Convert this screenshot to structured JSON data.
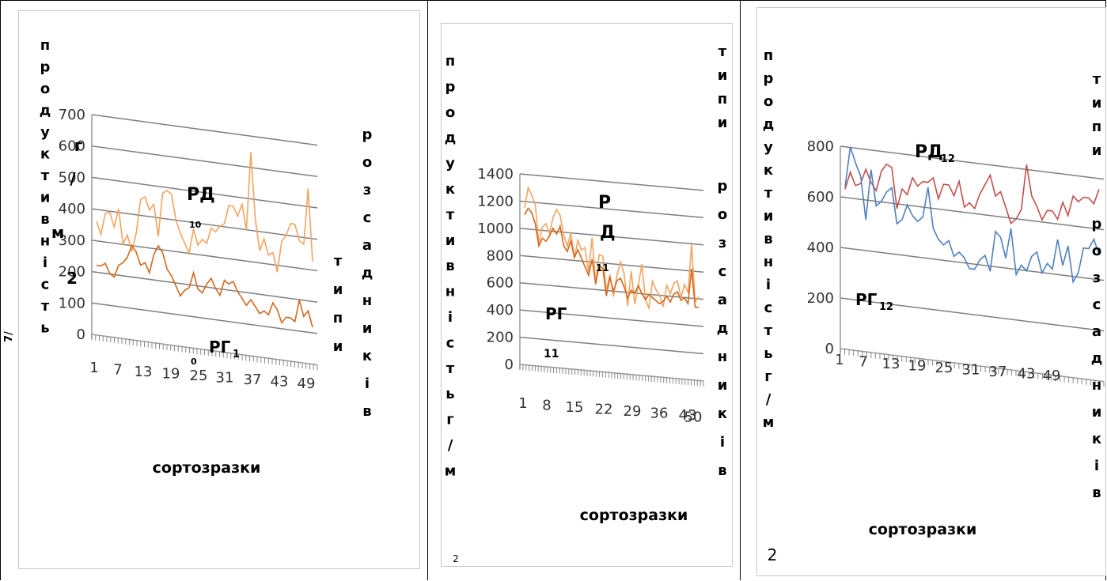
{
  "charts": [
    {
      "ylabel": [
        "п",
        "р",
        "о",
        "д",
        "у",
        "к",
        "т",
        "и",
        "в",
        "н",
        "і",
        "с",
        "т",
        "ь"
      ],
      "unit": [
        "г",
        "/",
        "м",
        "2"
      ],
      "right_label_a": [
        "р",
        "о",
        "з",
        "с",
        "а",
        "д",
        "н",
        "и",
        "к",
        "і",
        "в"
      ],
      "right_label_b": [
        "т",
        "и",
        "п",
        "и"
      ],
      "xlabel": "сортозразки",
      "yticks": [
        "0",
        "100",
        "200",
        "300",
        "400",
        "500",
        "600",
        "700"
      ],
      "xticks": [
        "1",
        "7",
        "13",
        "19",
        "25",
        "31",
        "37",
        "43",
        "49"
      ],
      "series_labels": [
        {
          "main": "РД",
          "sub": "10"
        },
        {
          "main": "РГ",
          "sub": "1"
        }
      ],
      "stray": [
        "0",
        "7/"
      ]
    },
    {
      "ylabel": [
        "п",
        "р",
        "о",
        "д",
        "у",
        "к",
        "т",
        "и",
        "в",
        "н",
        "і",
        "с",
        "т",
        "ь",
        "г",
        "/",
        "м"
      ],
      "ylabel_sub": "2",
      "right_label_a": [
        "т",
        "и",
        "п",
        "и"
      ],
      "right_label_b": [
        "р",
        "о",
        "з",
        "с",
        "а",
        "д",
        "н",
        "и",
        "к",
        "і",
        "в"
      ],
      "xlabel": "сортозразки",
      "yticks": [
        "0",
        "200",
        "400",
        "600",
        "800",
        "1000",
        "1200",
        "1400"
      ],
      "xticks": [
        "1",
        "8",
        "15",
        "22",
        "29",
        "36",
        "43",
        "50"
      ],
      "series_labels": [
        {
          "main": "Р",
          "main2": "Д",
          "sub": "11"
        },
        {
          "main": "РГ",
          "sub": "11"
        }
      ]
    },
    {
      "ylabel": [
        "п",
        "р",
        "о",
        "д",
        "у",
        "к",
        "т",
        "и",
        "в",
        "н",
        "і",
        "с",
        "т",
        "ь",
        "г",
        "/",
        "м"
      ],
      "ylabel_sub": "2",
      "right_label_a": [
        "т",
        "и",
        "п",
        "и"
      ],
      "right_label_b": [
        "р",
        "о",
        "з",
        "с",
        "а",
        "д",
        "н",
        "и",
        "к",
        "і",
        "в"
      ],
      "xlabel": "сортозразки",
      "yticks": [
        "0",
        "200",
        "400",
        "600",
        "800"
      ],
      "xticks": [
        "1",
        "7",
        "13",
        "19",
        "25",
        "31",
        "37",
        "43",
        "49"
      ],
      "series_labels": [
        {
          "main": "РД",
          "sub": "12"
        },
        {
          "main": "РГ",
          "sub": "12"
        }
      ]
    }
  ],
  "chart_data": [
    {
      "type": "line",
      "ylim": [
        0,
        700
      ],
      "x": [
        1,
        2,
        3,
        4,
        5,
        6,
        7,
        8,
        9,
        10,
        11,
        12,
        13,
        14,
        15,
        16,
        17,
        18,
        19,
        20,
        21,
        22,
        23,
        24,
        25,
        26,
        27,
        28,
        29,
        30,
        31,
        32,
        33,
        34,
        35,
        36,
        37,
        38,
        39,
        40,
        41,
        42,
        43,
        44,
        45,
        46,
        47,
        48,
        49,
        50
      ],
      "series": [
        {
          "color": "#f4a460",
          "values": [
            360,
            320,
            390,
            395,
            350,
            410,
            300,
            330,
            280,
            340,
            450,
            460,
            420,
            440,
            340,
            480,
            490,
            480,
            400,
            360,
            330,
            300,
            380,
            330,
            350,
            340,
            390,
            380,
            400,
            410,
            470,
            470,
            440,
            480,
            400,
            650,
            440,
            340,
            380,
            330,
            340,
            280,
            380,
            400,
            440,
            440,
            390,
            380,
            560,
            330
          ]
        },
        {
          "color": "#d2691e",
          "values": [
            220,
            220,
            230,
            200,
            190,
            230,
            240,
            260,
            300,
            280,
            240,
            250,
            220,
            280,
            310,
            290,
            240,
            220,
            190,
            160,
            180,
            190,
            240,
            190,
            180,
            210,
            230,
            200,
            180,
            230,
            220,
            230,
            200,
            180,
            160,
            180,
            160,
            140,
            150,
            140,
            180,
            160,
            120,
            140,
            140,
            130,
            200,
            150,
            170,
            120
          ]
        }
      ]
    },
    {
      "type": "line",
      "ylim": [
        0,
        1400
      ],
      "x": [
        1,
        2,
        3,
        4,
        5,
        6,
        7,
        8,
        9,
        10,
        11,
        12,
        13,
        14,
        15,
        16,
        17,
        18,
        19,
        20,
        21,
        22,
        23,
        24,
        25,
        26,
        27,
        28,
        29,
        30,
        31,
        32,
        33,
        34,
        35,
        36,
        37,
        38,
        39,
        40,
        41,
        42,
        43,
        44,
        45,
        46,
        47,
        48,
        49,
        50
      ],
      "series": [
        {
          "color": "#f4a460",
          "values": [
            1150,
            1300,
            1250,
            1180,
            900,
            1020,
            1050,
            980,
            1100,
            1160,
            1120,
            980,
            900,
            1000,
            820,
            950,
            880,
            900,
            720,
            980,
            650,
            860,
            850,
            600,
            720,
            560,
            720,
            820,
            740,
            500,
            760,
            520,
            660,
            820,
            560,
            500,
            700,
            640,
            600,
            520,
            680,
            620,
            700,
            720,
            600,
            700,
            640,
            1000,
            580,
            620
          ]
        },
        {
          "color": "#d2691e",
          "values": [
            1100,
            1150,
            1120,
            1040,
            880,
            940,
            920,
            960,
            1020,
            980,
            1040,
            900,
            860,
            940,
            820,
            880,
            820,
            760,
            700,
            820,
            640,
            780,
            760,
            560,
            700,
            600,
            680,
            700,
            640,
            560,
            620,
            600,
            660,
            600,
            560,
            600,
            580,
            560,
            540,
            560,
            600,
            560,
            620,
            640,
            580,
            600,
            560,
            820,
            540,
            540
          ]
        }
      ]
    },
    {
      "type": "line",
      "ylim": [
        0,
        800
      ],
      "x": [
        1,
        2,
        3,
        4,
        5,
        6,
        7,
        8,
        9,
        10,
        11,
        12,
        13,
        14,
        15,
        16,
        17,
        18,
        19,
        20,
        21,
        22,
        23,
        24,
        25,
        26,
        27,
        28,
        29,
        30,
        31,
        32,
        33,
        34,
        35,
        36,
        37,
        38,
        39,
        40,
        41,
        42,
        43,
        44,
        45,
        46,
        47,
        48,
        49,
        50
      ],
      "series": [
        {
          "color": "#c0504d",
          "values": [
            630,
            700,
            650,
            660,
            720,
            670,
            640,
            720,
            750,
            740,
            580,
            660,
            640,
            710,
            680,
            700,
            700,
            720,
            640,
            700,
            700,
            660,
            720,
            620,
            640,
            620,
            680,
            720,
            760,
            680,
            700,
            640,
            580,
            600,
            640,
            820,
            700,
            660,
            610,
            650,
            650,
            620,
            690,
            640,
            720,
            700,
            720,
            720,
            700,
            760
          ]
        },
        {
          "color": "#4f81bd",
          "values": [
            640,
            800,
            740,
            690,
            520,
            720,
            580,
            600,
            640,
            660,
            520,
            540,
            600,
            560,
            540,
            560,
            680,
            520,
            480,
            460,
            480,
            420,
            440,
            420,
            380,
            380,
            420,
            440,
            380,
            540,
            520,
            440,
            560,
            380,
            420,
            400,
            460,
            480,
            400,
            440,
            420,
            540,
            440,
            520,
            380,
            420,
            520,
            520,
            560,
            500
          ]
        }
      ]
    }
  ]
}
